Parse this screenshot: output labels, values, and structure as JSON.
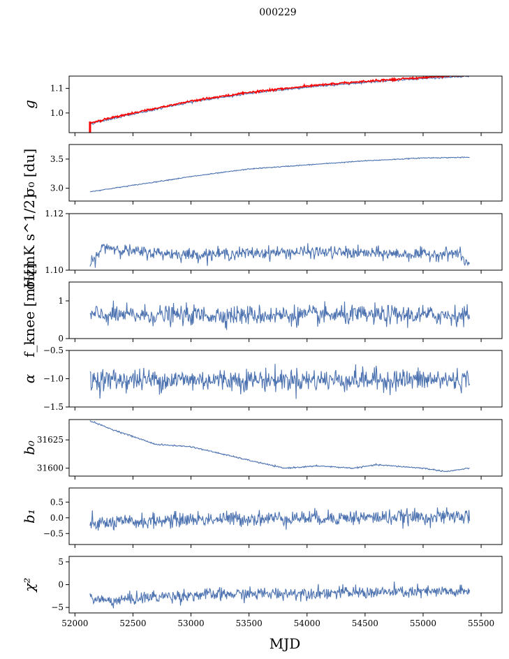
{
  "figure": {
    "suptitle": "000229",
    "xlabel": "MJD"
  },
  "chart_data": {
    "type": "line",
    "xlim": [
      51950,
      55680
    ],
    "xticks": [
      52000,
      52500,
      53000,
      53500,
      54000,
      54500,
      55000,
      55500
    ],
    "x_start": 52130,
    "x_end": 55400,
    "panels": [
      {
        "id": "g",
        "ylabel": "g",
        "ylim": [
          0.92,
          1.15
        ],
        "yticks": [
          {
            "v": 1.0,
            "label": "1.0"
          },
          {
            "v": 1.1,
            "label": "1.1"
          }
        ],
        "trend_points": [
          [
            52130,
            0.955
          ],
          [
            52300,
            0.975
          ],
          [
            52600,
            1.005
          ],
          [
            53000,
            1.045
          ],
          [
            53500,
            1.08
          ],
          [
            54000,
            1.105
          ],
          [
            54500,
            1.125
          ],
          [
            55000,
            1.14
          ],
          [
            55400,
            1.15
          ]
        ],
        "noise": 0.002,
        "overlay": {
          "color": "#ff0000",
          "offset": 0.004
        }
      },
      {
        "id": "sigma0_du",
        "ylabel": "σ₀ [du]",
        "ylim": [
          2.78,
          3.75
        ],
        "yticks": [
          {
            "v": 3.0,
            "label": "3.0"
          },
          {
            "v": 3.5,
            "label": "3.5"
          }
        ],
        "trend_points": [
          [
            52130,
            2.94
          ],
          [
            52500,
            3.05
          ],
          [
            53000,
            3.2
          ],
          [
            53500,
            3.33
          ],
          [
            54000,
            3.4
          ],
          [
            54500,
            3.47
          ],
          [
            55000,
            3.52
          ],
          [
            55400,
            3.53
          ]
        ],
        "noise": 0.004
      },
      {
        "id": "sigma0_mK",
        "ylabel": "σ₀[mK s^1/2]",
        "ylim": [
          1.1,
          1.12
        ],
        "yticks": [
          {
            "v": 1.1,
            "label": "1.10"
          },
          {
            "v": 1.12,
            "label": "1.12"
          }
        ],
        "trend_points": [
          [
            52130,
            1.1015
          ],
          [
            52250,
            1.1085
          ],
          [
            52500,
            1.1065
          ],
          [
            53000,
            1.1055
          ],
          [
            54000,
            1.1065
          ],
          [
            55000,
            1.1055
          ],
          [
            55300,
            1.106
          ],
          [
            55400,
            1.1015
          ]
        ],
        "noise": 0.0011
      },
      {
        "id": "fknee",
        "ylabel": "f_knee [mHz]",
        "ylim": [
          0,
          1.5
        ],
        "yticks": [
          {
            "v": 0,
            "label": "0"
          },
          {
            "v": 1,
            "label": "1"
          }
        ],
        "trend_points": [
          [
            52130,
            0.62
          ],
          [
            55400,
            0.62
          ]
        ],
        "noise": 0.13
      },
      {
        "id": "alpha",
        "ylabel": "α",
        "ylim": [
          -1.5,
          -0.5
        ],
        "yticks": [
          {
            "v": -1.5,
            "label": "−1.5"
          },
          {
            "v": -1.0,
            "label": "−1.0"
          },
          {
            "v": -0.5,
            "label": "−0.5"
          }
        ],
        "trend_points": [
          [
            52130,
            -1.02
          ],
          [
            55400,
            -1.02
          ]
        ],
        "noise": 0.1
      },
      {
        "id": "b0",
        "ylabel": "b₀",
        "ylim": [
          31593,
          31643
        ],
        "yticks": [
          {
            "v": 31600,
            "label": "31600"
          },
          {
            "v": 31625,
            "label": "31625"
          }
        ],
        "trend_points": [
          [
            52130,
            31642
          ],
          [
            52300,
            31635
          ],
          [
            52500,
            31628
          ],
          [
            52700,
            31621
          ],
          [
            53000,
            31619
          ],
          [
            53500,
            31607
          ],
          [
            53800,
            31600
          ],
          [
            54100,
            31602
          ],
          [
            54400,
            31600
          ],
          [
            54600,
            31603
          ],
          [
            55000,
            31600
          ],
          [
            55200,
            31597
          ],
          [
            55400,
            31600
          ]
        ],
        "noise": 0.3
      },
      {
        "id": "b1",
        "ylabel": "b₁",
        "ylim": [
          -0.85,
          0.95
        ],
        "yticks": [
          {
            "v": -0.5,
            "label": "−0.5"
          },
          {
            "v": 0.0,
            "label": "0.0"
          },
          {
            "v": 0.5,
            "label": "0.5"
          }
        ],
        "trend_points": [
          [
            52130,
            -0.2
          ],
          [
            52400,
            -0.15
          ],
          [
            53000,
            -0.05
          ],
          [
            54000,
            0.0
          ],
          [
            55000,
            0.02
          ],
          [
            55400,
            0.05
          ]
        ],
        "noise": 0.12
      },
      {
        "id": "chi2",
        "ylabel": "χ²",
        "ylim": [
          -6.2,
          6.2
        ],
        "yticks": [
          {
            "v": -5,
            "label": "−5"
          },
          {
            "v": 0,
            "label": "0"
          },
          {
            "v": 5,
            "label": "5"
          }
        ],
        "trend_points": [
          [
            52130,
            -3.0
          ],
          [
            52300,
            -3.6
          ],
          [
            52600,
            -2.8
          ],
          [
            53000,
            -2.3
          ],
          [
            54000,
            -1.8
          ],
          [
            55000,
            -1.6
          ],
          [
            55400,
            -1.6
          ]
        ],
        "noise": 0.7
      }
    ]
  },
  "colors": {
    "series": "#4c72b0",
    "overlay": "#ff0000",
    "axes": "#000000"
  }
}
